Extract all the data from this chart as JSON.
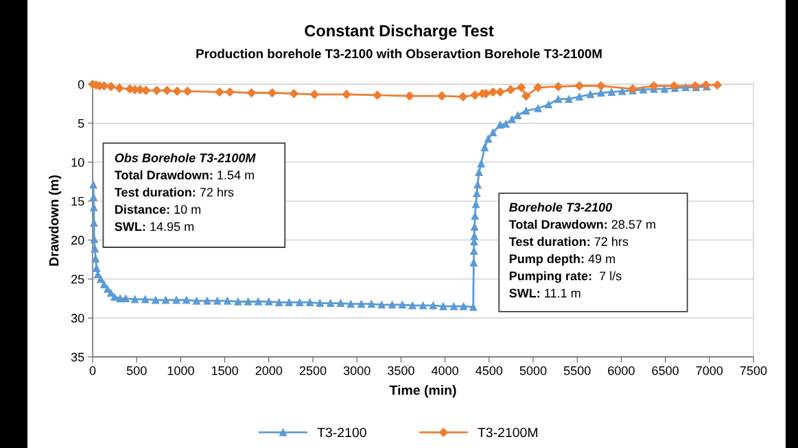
{
  "chart_data": {
    "type": "line",
    "title": "Constant Discharge Test",
    "subtitle": "Production borehole T3-2100 with Obseravtion Borehole T3-2100M",
    "xlabel": "Time (min)",
    "ylabel": "Drawdown (m)",
    "xlim": [
      0,
      7500
    ],
    "xticks": [
      0,
      500,
      1000,
      1500,
      2000,
      2500,
      3000,
      3500,
      4000,
      4500,
      5000,
      5500,
      6000,
      6500,
      7000,
      7500
    ],
    "ylim": [
      35,
      0
    ],
    "yticks": [
      0,
      5,
      10,
      15,
      20,
      25,
      30,
      35
    ],
    "grid": "y",
    "legend": "bottom",
    "line_style": "solid",
    "series": [
      {
        "name": "T3-2100",
        "color": "#5b9bd5",
        "marker": "triangle",
        "x": [
          8,
          10,
          13,
          15,
          18,
          26,
          34,
          44,
          60,
          91,
          130,
          169,
          208,
          247,
          312,
          376,
          480,
          597,
          714,
          830,
          950,
          1065,
          1180,
          1300,
          1415,
          1530,
          1650,
          1765,
          1880,
          2000,
          2115,
          2230,
          2350,
          2465,
          2580,
          2700,
          2815,
          2930,
          3050,
          3165,
          3280,
          3400,
          3515,
          3630,
          3750,
          3865,
          3980,
          4100,
          4210,
          4320,
          4325,
          4328,
          4330,
          4332,
          4335,
          4340,
          4350,
          4360,
          4370,
          4385,
          4410,
          4450,
          4490,
          4545,
          4625,
          4690,
          4760,
          4825,
          4920,
          5055,
          5175,
          5285,
          5405,
          5525,
          5650,
          5770,
          5890,
          6010,
          6130,
          6250,
          6370,
          6490,
          6610,
          6730,
          6850,
          6970
        ],
        "values": [
          12.9,
          14.5,
          15.8,
          17.8,
          19.9,
          21.1,
          22.4,
          23.6,
          24.4,
          25.0,
          25.7,
          26.3,
          26.8,
          27.3,
          27.5,
          27.5,
          27.6,
          27.6,
          27.7,
          27.7,
          27.7,
          27.7,
          27.8,
          27.8,
          27.8,
          27.8,
          27.9,
          27.9,
          27.9,
          27.9,
          28.0,
          28.0,
          28.0,
          28.0,
          28.1,
          28.1,
          28.1,
          28.2,
          28.2,
          28.2,
          28.3,
          28.3,
          28.3,
          28.4,
          28.4,
          28.4,
          28.5,
          28.5,
          28.5,
          28.6,
          22.9,
          21.4,
          20.2,
          19.5,
          18.3,
          16.9,
          15.4,
          14.0,
          12.9,
          11.3,
          10.2,
          8.1,
          7.0,
          6.2,
          5.2,
          5.1,
          4.5,
          4.0,
          3.4,
          3.1,
          2.6,
          1.9,
          1.9,
          1.6,
          1.3,
          1.1,
          1.0,
          0.9,
          0.8,
          0.7,
          0.6,
          0.6,
          0.5,
          0.4,
          0.4,
          0.3
        ]
      },
      {
        "name": "T3-2100M",
        "color": "#ed7d31",
        "marker": "diamond",
        "x": [
          0,
          39,
          78,
          130,
          208,
          304,
          423,
          480,
          540,
          605,
          727,
          844,
          960,
          1077,
          1440,
          1557,
          1804,
          2038,
          2284,
          2518,
          2882,
          3232,
          3598,
          3963,
          4204,
          4340,
          4425,
          4465,
          4545,
          4625,
          4745,
          4865,
          4920,
          5055,
          5285,
          5525,
          5770,
          6130,
          6370,
          6600,
          6840,
          6960,
          7090
        ],
        "values": [
          0.0,
          0.1,
          0.2,
          0.2,
          0.3,
          0.5,
          0.6,
          0.7,
          0.7,
          0.8,
          0.8,
          0.8,
          0.9,
          0.9,
          1.0,
          1.0,
          1.1,
          1.1,
          1.2,
          1.3,
          1.3,
          1.4,
          1.5,
          1.5,
          1.6,
          1.4,
          1.2,
          1.2,
          1.0,
          1.0,
          0.7,
          0.4,
          1.5,
          0.4,
          0.3,
          0.2,
          0.2,
          0.6,
          0.2,
          0.2,
          0.2,
          0.1,
          0.1
        ]
      }
    ],
    "annotations": [
      "Obs Borehole T3-2100M",
      "Total Drawdown: 1.54 m",
      "Test duration: 72 hrs",
      "Distance: 10 m",
      "SWL: 14.95 m",
      "Borehole T3-2100",
      "Total Drawdown: 28.57 m",
      "Test duration: 72 hrs",
      "Pump depth: 49 m",
      "Pumping rate:  7 l/s",
      "SWL: 11.1 m"
    ]
  }
}
